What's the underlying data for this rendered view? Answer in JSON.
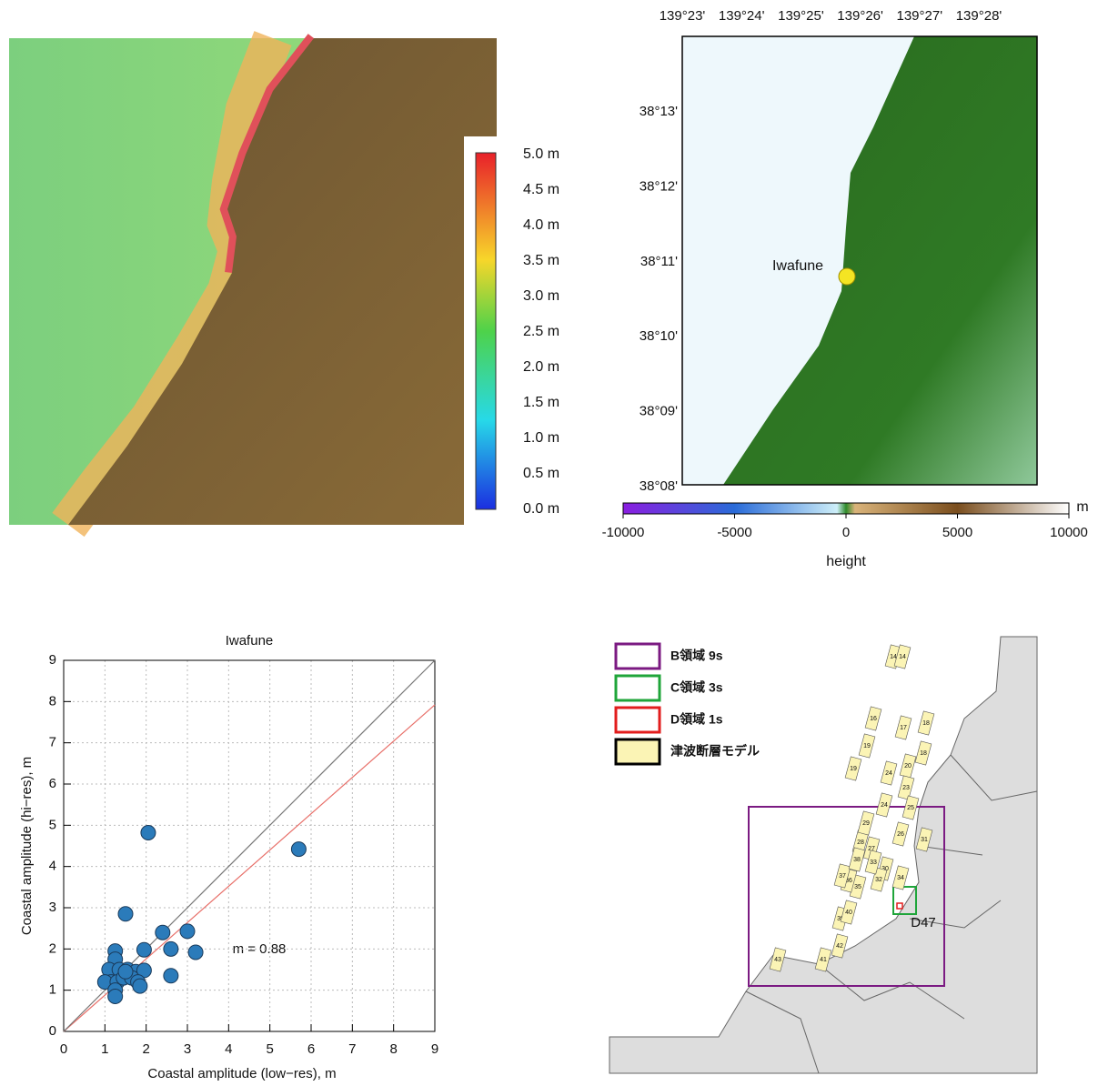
{
  "amplitude_map": {
    "colorbar_labels": [
      "5.0 m",
      "4.5 m",
      "4.0 m",
      "3.5 m",
      "3.0 m",
      "2.5 m",
      "2.0 m",
      "1.5 m",
      "1.0 m",
      "0.5 m",
      "0.0 m"
    ]
  },
  "topo_map": {
    "lon_ticks": [
      "139°23'",
      "139°24'",
      "139°25'",
      "139°26'",
      "139°27'",
      "139°28'"
    ],
    "lat_ticks": [
      "38°13'",
      "38°12'",
      "38°11'",
      "38°10'",
      "38°09'",
      "38°08'"
    ],
    "place": "Iwafune",
    "colorbar": {
      "label": "height",
      "unit": "m",
      "lim": [
        -10000,
        10000
      ],
      "ticks": [
        -10000,
        -5000,
        0,
        5000,
        10000
      ]
    }
  },
  "domain_map": {
    "legend": [
      "B領域 9s",
      "C領域 3s",
      "D領域 1s",
      "津波断層モデル"
    ],
    "site": "D47",
    "faults": [
      "14",
      "14",
      "16",
      "17",
      "18",
      "19",
      "19",
      "18",
      "24",
      "20",
      "23",
      "24",
      "25",
      "26",
      "27",
      "28",
      "29",
      "31",
      "30",
      "32",
      "33",
      "34",
      "35",
      "36",
      "37",
      "38",
      "39",
      "40",
      "41",
      "42",
      "43"
    ]
  },
  "chart_data": {
    "type": "scatter",
    "title": "Iwafune",
    "x_label": "Coastal amplitude (low−res), m",
    "y_label": "Coastal amplitude (hi−res), m",
    "annotation": "m = 0.88",
    "xlim": [
      0,
      9
    ],
    "ylim": [
      0,
      9
    ],
    "xticks": [
      0,
      1,
      2,
      3,
      4,
      5,
      6,
      7,
      8,
      9
    ],
    "yticks": [
      0,
      1,
      2,
      3,
      4,
      5,
      6,
      7,
      8,
      9
    ],
    "grid": true,
    "series": [
      {
        "color": "#2b7bba",
        "x": [
          2.05,
          5.7,
          1.5,
          2.4,
          3.0,
          1.25,
          1.95,
          2.6,
          3.2,
          1.25,
          1.1,
          1.35,
          1.55,
          1.75,
          1.95,
          1.15,
          1.0,
          1.3,
          1.45,
          1.65,
          1.8,
          1.85,
          2.6,
          1.25,
          1.25,
          1.5
        ],
        "values": [
          4.82,
          4.42,
          2.85,
          2.4,
          2.43,
          1.95,
          1.98,
          2.0,
          1.92,
          1.75,
          1.5,
          1.5,
          1.5,
          1.45,
          1.48,
          1.2,
          1.2,
          1.2,
          1.3,
          1.3,
          1.2,
          1.1,
          1.35,
          1.0,
          0.85,
          1.45
        ]
      },
      {
        "color": "#777777",
        "x": [
          0,
          9
        ],
        "values": [
          0,
          9
        ]
      },
      {
        "color": "#e8706a",
        "x": [
          0,
          9
        ],
        "values": [
          0,
          7.92
        ]
      }
    ]
  }
}
